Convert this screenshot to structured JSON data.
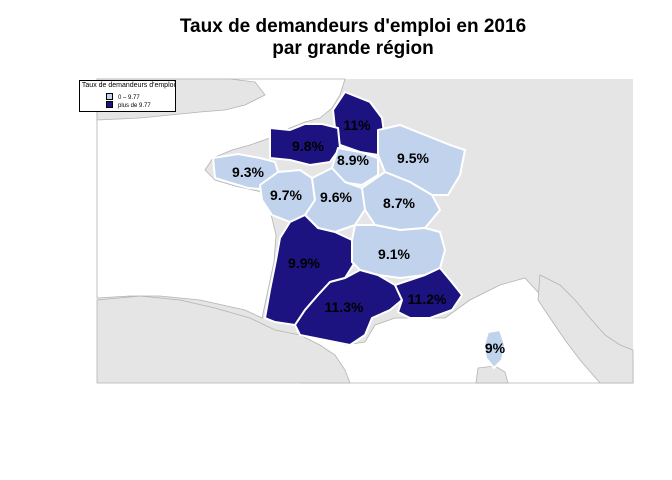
{
  "title": {
    "line1": "Taux de demandeurs d'emploi en 2016",
    "line2": "par grande région"
  },
  "legend": {
    "title": "Taux de demandeurs d'emploi",
    "classes": [
      {
        "label": "0 – 9.77",
        "color": "#c1d3ec"
      },
      {
        "label": "plus de 9.77",
        "color": "#1c1380"
      }
    ]
  },
  "colors": {
    "background_land": "#e5e5e5",
    "sea": "#ffffff",
    "low": "#c1d3ec",
    "high": "#1c1380",
    "region_border": "#ffffff",
    "label": "#000000"
  },
  "regions": [
    {
      "id": "hauts-de-france",
      "label": "11%",
      "value": 11.0,
      "class": "high"
    },
    {
      "id": "normandie",
      "label": "9.8%",
      "value": 9.8,
      "class": "high"
    },
    {
      "id": "ile-de-france",
      "label": "8.9%",
      "value": 8.9,
      "class": "low"
    },
    {
      "id": "grand-est",
      "label": "9.5%",
      "value": 9.5,
      "class": "low"
    },
    {
      "id": "bretagne",
      "label": "9.3%",
      "value": 9.3,
      "class": "low"
    },
    {
      "id": "pays-de-la-loire",
      "label": "9.7%",
      "value": 9.7,
      "class": "low"
    },
    {
      "id": "centre-val-de-loire",
      "label": "9.6%",
      "value": 9.6,
      "class": "low"
    },
    {
      "id": "bourgogne-franche-comte",
      "label": "8.7%",
      "value": 8.7,
      "class": "low"
    },
    {
      "id": "nouvelle-aquitaine",
      "label": "9.9%",
      "value": 9.9,
      "class": "high"
    },
    {
      "id": "auvergne-rhone-alpes",
      "label": "9.1%",
      "value": 9.1,
      "class": "low"
    },
    {
      "id": "occitanie",
      "label": "11.3%",
      "value": 11.3,
      "class": "high"
    },
    {
      "id": "provence-alpes-cote-d-azur",
      "label": "11.2%",
      "value": 11.2,
      "class": "high"
    },
    {
      "id": "corse",
      "label": "9%",
      "value": 9.0,
      "class": "low"
    }
  ]
}
